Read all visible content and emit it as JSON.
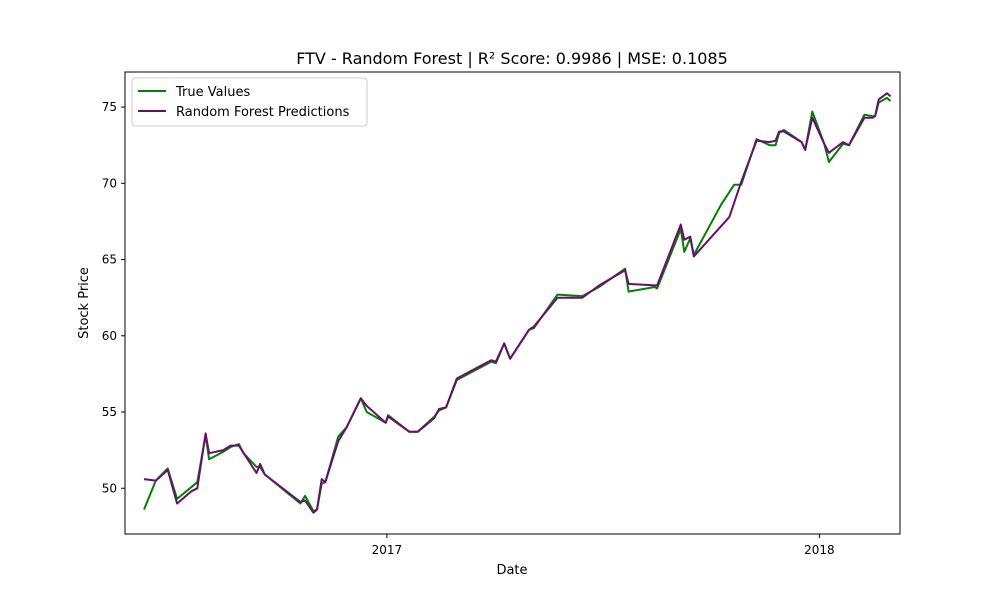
{
  "chart_data": {
    "type": "line",
    "title": "FTV - Random Forest | R² Score: 0.9986 | MSE: 0.1085",
    "xlabel": "Date",
    "ylabel": "Stock Price",
    "xlim": [
      "2016-05-25",
      "2018-03-10"
    ],
    "ylim": [
      47.0,
      77.3
    ],
    "xticks": [
      {
        "date": "2017-01-01",
        "label": "2017"
      },
      {
        "date": "2018-01-01",
        "label": "2018"
      }
    ],
    "yticks": [
      50,
      55,
      60,
      65,
      70,
      75
    ],
    "grid": false,
    "legend_position": "upper-left",
    "series": [
      {
        "name": "True Values",
        "color": "#008000",
        "points": [
          [
            "2016-06-10",
            48.6
          ],
          [
            "2016-06-20",
            50.5
          ],
          [
            "2016-06-30",
            51.3
          ],
          [
            "2016-07-08",
            49.3
          ],
          [
            "2016-07-25",
            50.4
          ],
          [
            "2016-08-01",
            53.5
          ],
          [
            "2016-08-04",
            51.9
          ],
          [
            "2016-08-16",
            52.4
          ],
          [
            "2016-08-22",
            52.7
          ],
          [
            "2016-08-29",
            52.9
          ],
          [
            "2016-09-02",
            52.3
          ],
          [
            "2016-09-13",
            51.4
          ],
          [
            "2016-09-16",
            51.4
          ],
          [
            "2016-09-20",
            50.9
          ],
          [
            "2016-10-20",
            49.0
          ],
          [
            "2016-10-24",
            49.5
          ],
          [
            "2016-10-31",
            48.5
          ],
          [
            "2016-11-03",
            48.6
          ],
          [
            "2016-11-07",
            50.3
          ],
          [
            "2016-11-10",
            50.4
          ],
          [
            "2016-11-21",
            53.4
          ],
          [
            "2016-11-28",
            54.0
          ],
          [
            "2016-12-10",
            55.9
          ],
          [
            "2016-12-15",
            55.0
          ],
          [
            "2016-12-31",
            54.3
          ],
          [
            "2017-01-02",
            54.8
          ],
          [
            "2017-01-20",
            53.7
          ],
          [
            "2017-01-27",
            53.7
          ],
          [
            "2017-02-10",
            54.7
          ],
          [
            "2017-02-14",
            55.1
          ],
          [
            "2017-02-20",
            55.3
          ],
          [
            "2017-03-01",
            57.1
          ],
          [
            "2017-03-30",
            58.3
          ],
          [
            "2017-04-03",
            58.2
          ],
          [
            "2017-04-10",
            59.5
          ],
          [
            "2017-04-15",
            58.5
          ],
          [
            "2017-05-01",
            60.4
          ],
          [
            "2017-05-05",
            60.5
          ],
          [
            "2017-05-25",
            62.7
          ],
          [
            "2017-06-15",
            62.6
          ],
          [
            "2017-06-29",
            63.2
          ],
          [
            "2017-07-21",
            64.4
          ],
          [
            "2017-07-24",
            62.9
          ],
          [
            "2017-08-15",
            63.2
          ],
          [
            "2017-08-17",
            63.1
          ],
          [
            "2017-09-06",
            67.0
          ],
          [
            "2017-09-09",
            65.5
          ],
          [
            "2017-09-14",
            66.4
          ],
          [
            "2017-09-17",
            65.3
          ],
          [
            "2017-10-10",
            68.6
          ],
          [
            "2017-10-21",
            69.9
          ],
          [
            "2017-10-27",
            69.9
          ],
          [
            "2017-11-09",
            72.9
          ],
          [
            "2017-11-20",
            72.5
          ],
          [
            "2017-11-25",
            72.5
          ],
          [
            "2017-11-28",
            73.3
          ],
          [
            "2017-12-02",
            73.5
          ],
          [
            "2017-12-17",
            72.7
          ],
          [
            "2017-12-20",
            72.2
          ],
          [
            "2017-12-26",
            74.7
          ],
          [
            "2018-01-05",
            72.6
          ],
          [
            "2018-01-09",
            71.4
          ],
          [
            "2018-01-21",
            72.6
          ],
          [
            "2018-01-26",
            72.5
          ],
          [
            "2018-02-08",
            74.5
          ],
          [
            "2018-02-15",
            74.4
          ],
          [
            "2018-02-17",
            74.4
          ],
          [
            "2018-02-20",
            75.3
          ],
          [
            "2018-02-27",
            75.6
          ],
          [
            "2018-03-02",
            75.4
          ]
        ]
      },
      {
        "name": "Random Forest Predictions",
        "color": "#6a0d6f",
        "points": [
          [
            "2016-06-10",
            50.6
          ],
          [
            "2016-06-20",
            50.5
          ],
          [
            "2016-06-30",
            51.2
          ],
          [
            "2016-07-08",
            49.0
          ],
          [
            "2016-07-20",
            49.8
          ],
          [
            "2016-07-25",
            50.0
          ],
          [
            "2016-08-01",
            53.6
          ],
          [
            "2016-08-04",
            52.3
          ],
          [
            "2016-08-16",
            52.5
          ],
          [
            "2016-08-22",
            52.8
          ],
          [
            "2016-08-29",
            52.8
          ],
          [
            "2016-09-13",
            51.0
          ],
          [
            "2016-09-16",
            51.6
          ],
          [
            "2016-09-20",
            50.9
          ],
          [
            "2016-10-20",
            49.1
          ],
          [
            "2016-10-24",
            49.2
          ],
          [
            "2016-10-31",
            48.4
          ],
          [
            "2016-11-03",
            48.6
          ],
          [
            "2016-11-07",
            50.6
          ],
          [
            "2016-11-10",
            50.4
          ],
          [
            "2016-11-21",
            53.1
          ],
          [
            "2016-11-28",
            54.0
          ],
          [
            "2016-12-10",
            55.9
          ],
          [
            "2016-12-15",
            55.4
          ],
          [
            "2016-12-31",
            54.3
          ],
          [
            "2017-01-02",
            54.7
          ],
          [
            "2017-01-20",
            53.7
          ],
          [
            "2017-01-27",
            53.7
          ],
          [
            "2017-02-10",
            54.6
          ],
          [
            "2017-02-14",
            55.2
          ],
          [
            "2017-02-20",
            55.3
          ],
          [
            "2017-03-01",
            57.2
          ],
          [
            "2017-03-30",
            58.4
          ],
          [
            "2017-04-03",
            58.3
          ],
          [
            "2017-04-10",
            59.5
          ],
          [
            "2017-04-15",
            58.5
          ],
          [
            "2017-05-01",
            60.4
          ],
          [
            "2017-05-05",
            60.6
          ],
          [
            "2017-05-25",
            62.5
          ],
          [
            "2017-06-15",
            62.5
          ],
          [
            "2017-06-29",
            63.3
          ],
          [
            "2017-07-21",
            64.3
          ],
          [
            "2017-07-24",
            63.4
          ],
          [
            "2017-08-17",
            63.3
          ],
          [
            "2017-09-06",
            67.3
          ],
          [
            "2017-09-09",
            66.3
          ],
          [
            "2017-09-14",
            66.5
          ],
          [
            "2017-09-17",
            65.2
          ],
          [
            "2017-10-17",
            67.8
          ],
          [
            "2017-10-27",
            70.1
          ],
          [
            "2017-11-09",
            72.8
          ],
          [
            "2017-11-20",
            72.7
          ],
          [
            "2017-11-25",
            72.8
          ],
          [
            "2017-11-28",
            73.4
          ],
          [
            "2017-12-02",
            73.4
          ],
          [
            "2017-12-17",
            72.7
          ],
          [
            "2017-12-20",
            72.2
          ],
          [
            "2017-12-26",
            74.3
          ],
          [
            "2018-01-05",
            72.6
          ],
          [
            "2018-01-09",
            72.0
          ],
          [
            "2018-01-21",
            72.7
          ],
          [
            "2018-01-26",
            72.5
          ],
          [
            "2018-02-08",
            74.3
          ],
          [
            "2018-02-15",
            74.3
          ],
          [
            "2018-02-17",
            74.4
          ],
          [
            "2018-02-20",
            75.5
          ],
          [
            "2018-02-27",
            75.9
          ],
          [
            "2018-03-02",
            75.7
          ]
        ]
      }
    ]
  }
}
